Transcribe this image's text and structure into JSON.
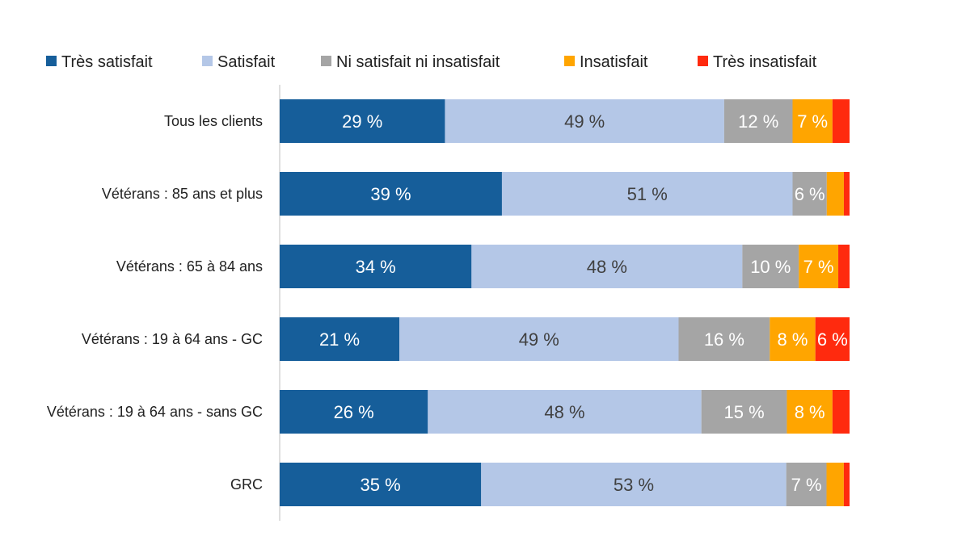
{
  "chart_data": {
    "type": "bar",
    "orientation": "horizontal",
    "stacked": true,
    "percent": true,
    "title": "",
    "xlabel": "",
    "ylabel": "",
    "xlim": [
      0,
      100
    ],
    "grid": false,
    "legend_position": "top",
    "categories": [
      "Tous les clients",
      "Vétérans : 85 ans et plus",
      "Vétérans : 65 à 84 ans",
      "Vétérans : 19 à 64 ans - GC",
      "Vétérans : 19 à 64 ans - sans GC",
      "GRC"
    ],
    "series": [
      {
        "name": "Très satisfait",
        "color": "#165E9A",
        "label_color": "#ffffff",
        "values": [
          29,
          39,
          34,
          21,
          26,
          35
        ]
      },
      {
        "name": "Satisfait",
        "color": "#B4C7E7",
        "label_color": "#404040",
        "values": [
          49,
          51,
          48,
          49,
          48,
          53
        ]
      },
      {
        "name": "Ni satisfait ni insatisfait",
        "color": "#A5A5A5",
        "label_color": "#ffffff",
        "values": [
          12,
          6,
          10,
          16,
          15,
          7
        ]
      },
      {
        "name": "Insatisfait",
        "color": "#FFA500",
        "label_color": "#ffffff",
        "values": [
          7,
          3,
          7,
          8,
          8,
          3
        ]
      },
      {
        "name": "Très insatisfait",
        "color": "#FF2A0E",
        "label_color": "#ffffff",
        "values": [
          3,
          1,
          2,
          6,
          3,
          1
        ]
      }
    ],
    "data_labels_shown": [
      [
        true,
        true,
        true,
        true,
        false
      ],
      [
        true,
        true,
        true,
        false,
        false
      ],
      [
        true,
        true,
        true,
        true,
        false
      ],
      [
        true,
        true,
        true,
        true,
        true
      ],
      [
        true,
        true,
        true,
        true,
        false
      ],
      [
        true,
        true,
        true,
        false,
        false
      ]
    ],
    "label_suffix": " %"
  }
}
